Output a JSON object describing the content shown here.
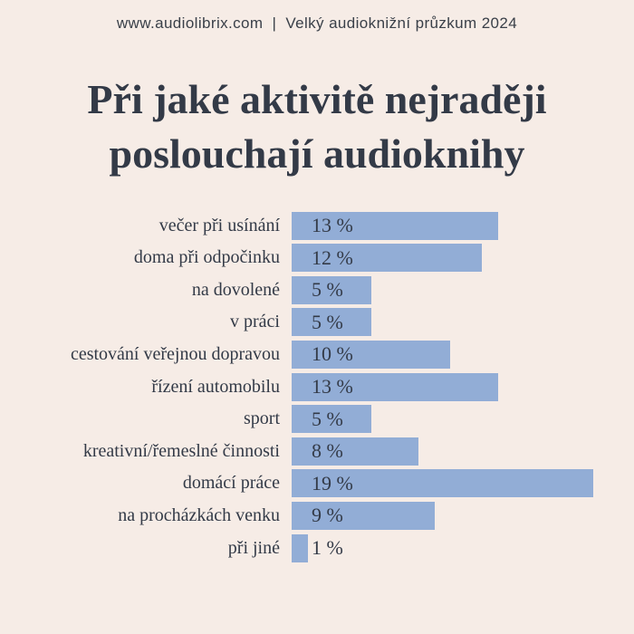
{
  "header": {
    "site": "www.audiolibrix.com",
    "separator": "|",
    "survey": "Velký audioknižní průzkum 2024"
  },
  "title": {
    "line1": "Při jaké aktivitě nejraději",
    "line2": "poslouchají audioknihy"
  },
  "colors": {
    "background": "#F6ECE6",
    "bar": "#92ADD6",
    "text": "#333A47"
  },
  "chart_data": {
    "type": "bar",
    "orientation": "horizontal",
    "title": "Při jaké aktivitě nejraději poslouchají audioknihy",
    "categories": [
      "večer při usínání",
      "doma při odpočinku",
      "na dovolené",
      "v práci",
      "cestování veřejnou dopravou",
      "řízení automobilu",
      "sport",
      "kreativní/řemeslné činnosti",
      "domácí práce",
      "na procházkách venku",
      "při jiné"
    ],
    "values": [
      13,
      12,
      5,
      5,
      10,
      13,
      5,
      8,
      19,
      9,
      1
    ],
    "value_labels": [
      "13 %",
      "12 %",
      "5 %",
      "5 %",
      "10 %",
      "13 %",
      "5 %",
      "8 %",
      "19 %",
      "9 %",
      "1 %"
    ],
    "unit": "%",
    "xlabel": "",
    "ylabel": "",
    "xlim": [
      0,
      21
    ],
    "grid": false,
    "legend": null,
    "value_label_position": "fixed-left-inside-bar"
  }
}
